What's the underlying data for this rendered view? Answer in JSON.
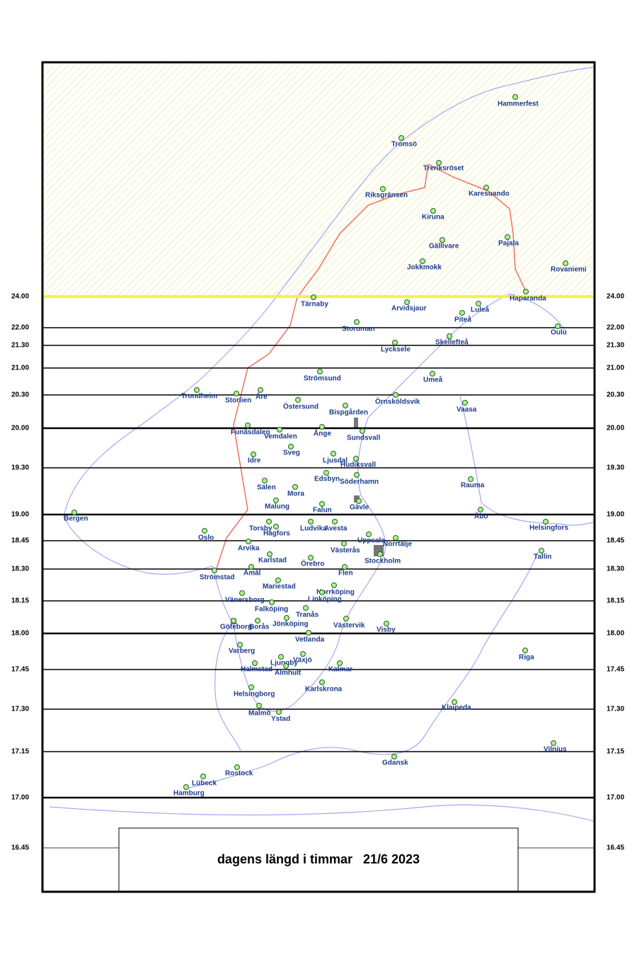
{
  "title": "dagens längd i timmar   21/6 2023",
  "day_length_lines": [
    "24.00",
    "22.00",
    "21.30",
    "21.00",
    "20.30",
    "20.00",
    "19.30",
    "19.00",
    "18.45",
    "18.30",
    "18.15",
    "18.00",
    "17.45",
    "17.30",
    "17.15",
    "17.00",
    "16.45"
  ],
  "cities": [
    "Hammerfest",
    "Tromsö",
    "Treriksröset",
    "Karesuando",
    "Riksgränsen",
    "Kiruna",
    "Pajala",
    "Gällivare",
    "Rovaniemi",
    "Jokkmokk",
    "Haparanda",
    "Tärnaby",
    "Arvidsjaur",
    "Luleå",
    "Piteå",
    "Storuman",
    "Oulu",
    "Skellefteå",
    "Lycksele",
    "Umeå",
    "Strömsund",
    "Trondheim",
    "Storlien",
    "Åre",
    "Örnsköldsvik",
    "Östersund",
    "Vaasa",
    "Bispgården",
    "Funäsdalen",
    "Vemdalen",
    "Ånge",
    "Sundsvall",
    "Sveg",
    "Idre",
    "Ljusdal",
    "Hudiksvall",
    "Edsbyn",
    "Söderhamn",
    "Rauma",
    "Sälen",
    "Mora",
    "Malung",
    "Falun",
    "Gävle",
    "Åbo",
    "Bergen",
    "Torsby",
    "Hagfors",
    "Ludvika",
    "Avesta",
    "Helsingfors",
    "Oslo",
    "Uppsala",
    "Norrtälje",
    "Arvika",
    "Västerås",
    "Karlstad",
    "Stockholm",
    "Tallin",
    "Örebro",
    "Flen",
    "Åmål",
    "Strömstad",
    "Mariestad",
    "Norrköping",
    "Vänersborg",
    "Linköping",
    "Falköping",
    "Tranås",
    "Jönköping",
    "Göteborg",
    "Borås",
    "Västervik",
    "Visby",
    "Vetlanda",
    "Varberg",
    "Riga",
    "Växjö",
    "Ljungby",
    "Halmstad",
    "Kalmar",
    "Älmhult",
    "Karlskrona",
    "Helsingborg",
    "Klaipeda",
    "Malmö",
    "Ystad",
    "Vilnius",
    "Gdansk",
    "Rostock",
    "Lübeck",
    "Hamburg"
  ]
}
